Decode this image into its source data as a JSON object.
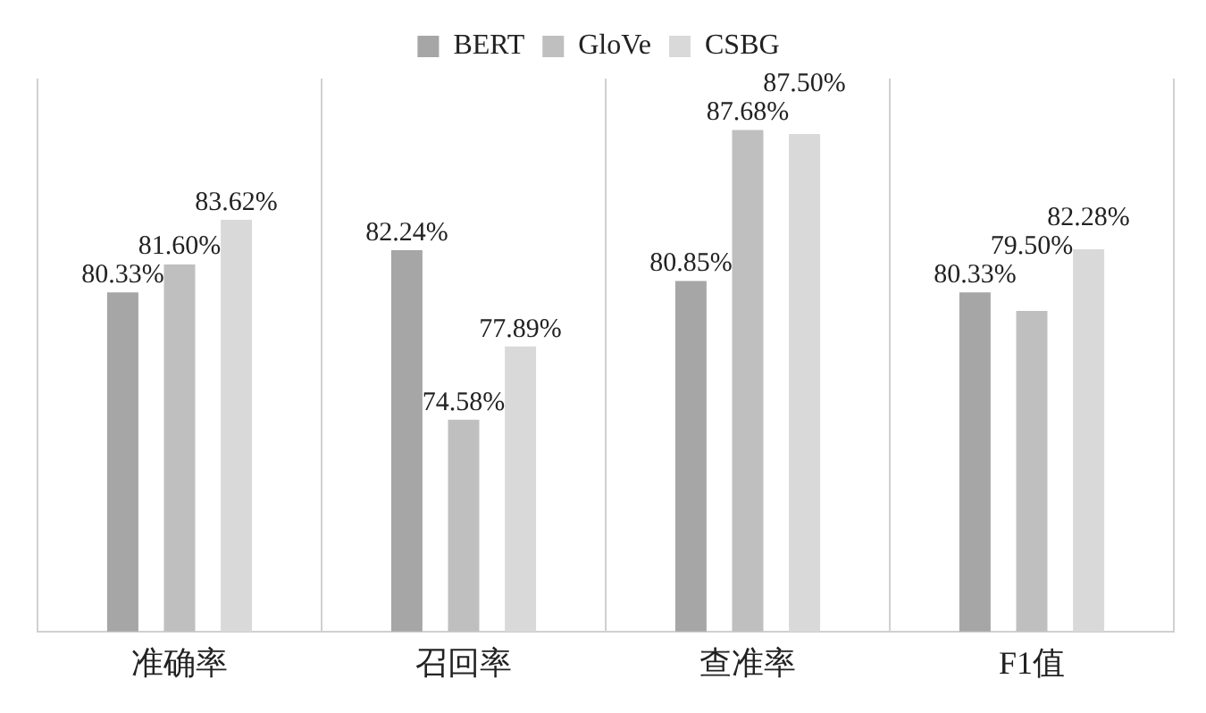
{
  "chart_data": {
    "type": "bar",
    "categories": [
      "准确率",
      "召回率",
      "查准率",
      "F1值"
    ],
    "series": [
      {
        "name": "BERT",
        "color": "#a6a6a6",
        "values": [
          80.33,
          82.24,
          80.85,
          80.33
        ],
        "value_labels": [
          "80.33%",
          "82.24%",
          "80.85%",
          "80.33%"
        ]
      },
      {
        "name": "GloVe",
        "color": "#bfbfbf",
        "values": [
          81.6,
          74.58,
          87.68,
          79.5
        ],
        "value_labels": [
          "81.60%",
          "74.58%",
          "87.68%",
          "79.50%"
        ]
      },
      {
        "name": "CSBG",
        "color": "#d9d9d9",
        "values": [
          83.62,
          77.89,
          87.5,
          82.28
        ],
        "value_labels": [
          "83.62%",
          "77.89%",
          "87.50%",
          "82.28%"
        ]
      }
    ],
    "ylim": [
      65,
      90
    ],
    "tick_labels": "x",
    "grid": "x",
    "legend": "top"
  }
}
